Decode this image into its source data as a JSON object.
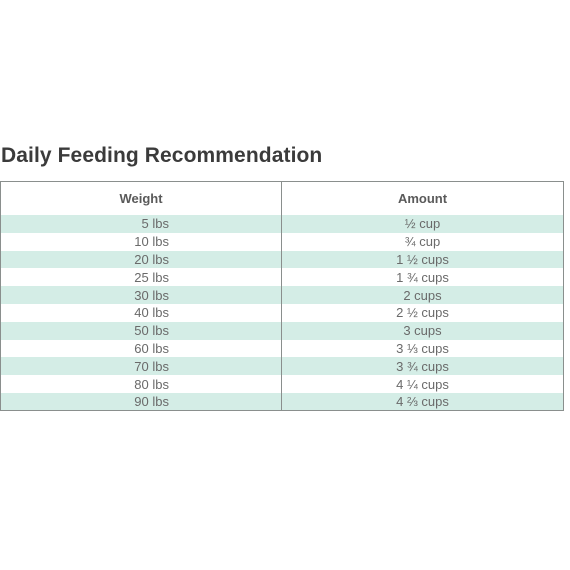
{
  "title": "Daily Feeding Recommendation",
  "table": {
    "headers": {
      "weight": "Weight",
      "amount": "Amount"
    },
    "rows": [
      {
        "weight": "5 lbs",
        "amount": "½ cup"
      },
      {
        "weight": "10 lbs",
        "amount": "¾ cup"
      },
      {
        "weight": "20 lbs",
        "amount": "1 ½ cups"
      },
      {
        "weight": "25 lbs",
        "amount": "1 ¾ cups"
      },
      {
        "weight": "30 lbs",
        "amount": "2 cups"
      },
      {
        "weight": "40 lbs",
        "amount": "2 ½ cups"
      },
      {
        "weight": "50 lbs",
        "amount": "3 cups"
      },
      {
        "weight": "60 lbs",
        "amount": "3 ⅓ cups"
      },
      {
        "weight": "70 lbs",
        "amount": "3 ¾ cups"
      },
      {
        "weight": "80 lbs",
        "amount": "4 ¼ cups"
      },
      {
        "weight": "90 lbs",
        "amount": "4 ⅔ cups"
      }
    ]
  },
  "colors": {
    "stripe": "#d4ede6",
    "border": "#8a8f8d",
    "title": "#3b3b3b"
  }
}
